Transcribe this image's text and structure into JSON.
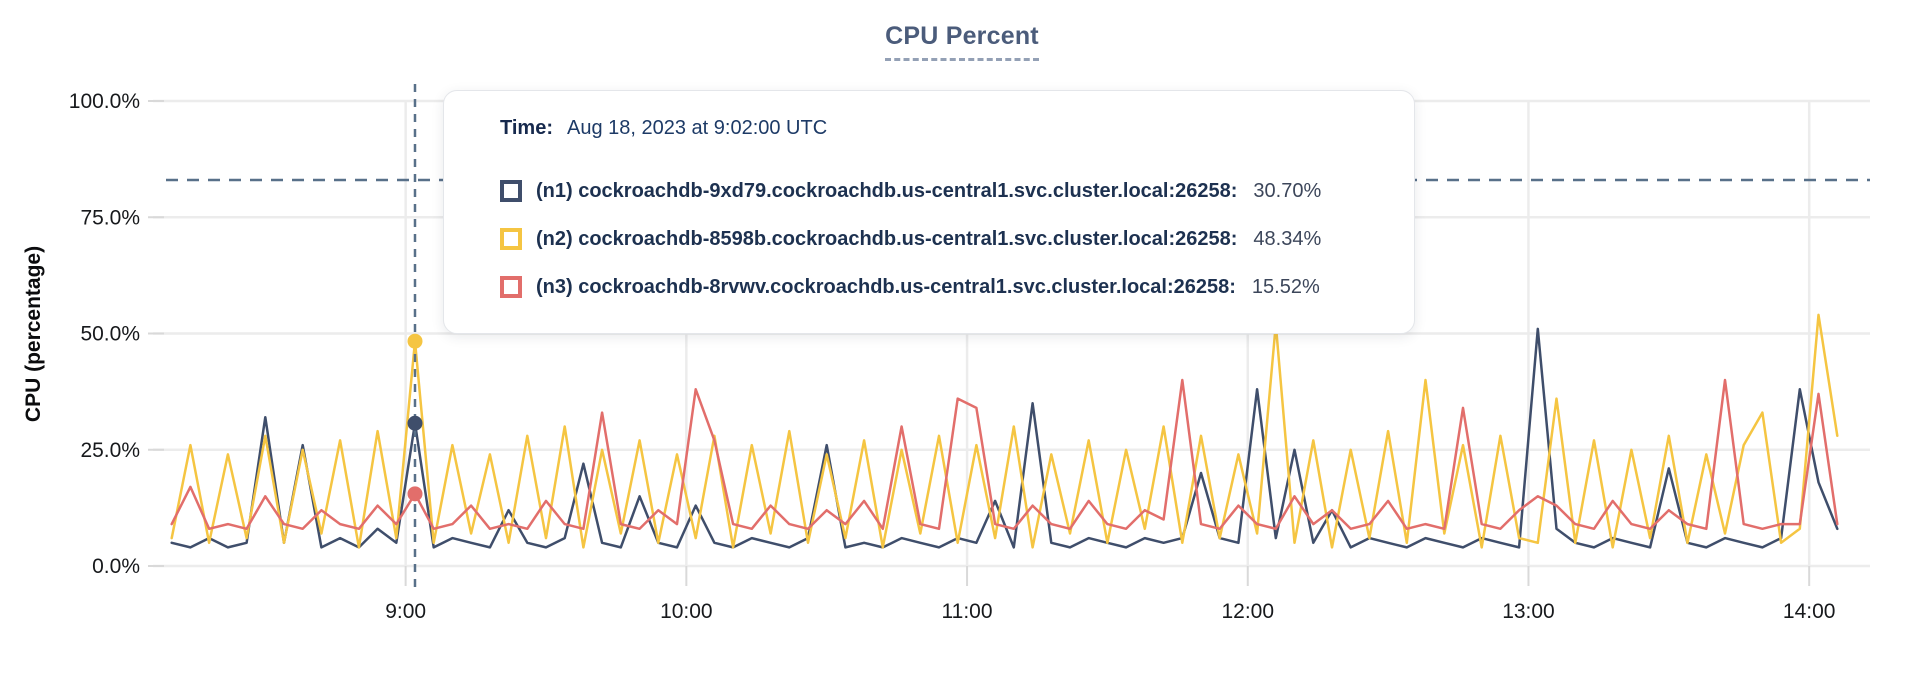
{
  "chart": {
    "title": "CPU Percent"
  },
  "tooltip": {
    "time_label": "Time:",
    "time_value": "Aug 18, 2023 at 9:02:00 UTC",
    "rows": [
      {
        "series": "n1",
        "label": "(n1) cockroachdb-9xd79.cockroachdb.us-central1.svc.cluster.local:26258:",
        "value": "30.70%"
      },
      {
        "series": "n2",
        "label": "(n2) cockroachdb-8598b.cockroachdb.us-central1.svc.cluster.local:26258:",
        "value": "48.34%"
      },
      {
        "series": "n3",
        "label": "(n3) cockroachdb-8rvwv.cockroachdb.us-central1.svc.cluster.local:26258:",
        "value": "15.52%"
      }
    ]
  },
  "colors": {
    "n1": "#3f4e6b",
    "n2": "#f5c542",
    "n3": "#e26e6b",
    "gridline": "#ececec",
    "tick": "#d9d9d9",
    "guide_dash": "#587089",
    "axis_text": "#17191c"
  },
  "chart_data": {
    "type": "line",
    "title": "CPU Percent",
    "xlabel": "",
    "ylabel": "CPU (percentage)",
    "ylim": [
      0,
      100
    ],
    "grid": true,
    "legend_position": "tooltip",
    "y_ticks": [
      {
        "value": 0,
        "label": "0.0%"
      },
      {
        "value": 25,
        "label": "25.0%"
      },
      {
        "value": 50,
        "label": "50.0%"
      },
      {
        "value": 75,
        "label": "75.0%"
      },
      {
        "value": 100,
        "label": "100.0%"
      }
    ],
    "x_ticks": [
      {
        "minutes": 540,
        "label": "9:00"
      },
      {
        "minutes": 600,
        "label": "10:00"
      },
      {
        "minutes": 660,
        "label": "11:00"
      },
      {
        "minutes": 720,
        "label": "12:00"
      },
      {
        "minutes": 780,
        "label": "13:00"
      },
      {
        "minutes": 840,
        "label": "14:00"
      }
    ],
    "x_window_minutes": [
      486,
      853
    ],
    "x_start_minutes": 490,
    "x_step_minutes": 4,
    "threshold_line_percent": 83,
    "hover": {
      "minutes": 542,
      "time": "9:02:00 UTC",
      "points": [
        {
          "series": "n1",
          "value": 30.7
        },
        {
          "series": "n2",
          "value": 48.34
        },
        {
          "series": "n3",
          "value": 15.52
        }
      ]
    },
    "series": [
      {
        "name": "n1",
        "host": "cockroachdb-9xd79.cockroachdb.us-central1.svc.cluster.local:26258",
        "color": "#3f4e6b",
        "values": [
          5,
          4,
          6,
          4,
          5,
          32,
          5,
          26,
          4,
          6,
          4,
          8,
          5,
          30.7,
          4,
          6,
          5,
          4,
          12,
          5,
          4,
          6,
          22,
          5,
          4,
          15,
          5,
          4,
          13,
          5,
          4,
          6,
          5,
          4,
          6,
          26,
          4,
          5,
          4,
          6,
          5,
          4,
          6,
          5,
          14,
          4,
          35,
          5,
          4,
          6,
          5,
          4,
          6,
          5,
          6,
          20,
          6,
          5,
          38,
          6,
          25,
          5,
          12,
          4,
          6,
          5,
          4,
          6,
          5,
          4,
          6,
          5,
          4,
          51,
          8,
          5,
          4,
          6,
          5,
          4,
          21,
          5,
          4,
          6,
          5,
          4,
          6,
          38,
          18,
          8
        ]
      },
      {
        "name": "n2",
        "host": "cockroachdb-8598b.cockroachdb.us-central1.svc.cluster.local:26258",
        "color": "#f5c542",
        "values": [
          6,
          26,
          5,
          24,
          6,
          28,
          5,
          25,
          7,
          27,
          4,
          29,
          6,
          48.34,
          5,
          26,
          7,
          24,
          5,
          28,
          6,
          30,
          4,
          25,
          7,
          27,
          5,
          24,
          6,
          28,
          4,
          26,
          7,
          29,
          5,
          24,
          6,
          27,
          4,
          25,
          7,
          28,
          5,
          26,
          6,
          30,
          4,
          24,
          7,
          27,
          5,
          25,
          8,
          30,
          5,
          28,
          6,
          24,
          7,
          52,
          5,
          27,
          4,
          25,
          6,
          29,
          5,
          40,
          7,
          26,
          4,
          28,
          6,
          5,
          36,
          5,
          27,
          4,
          25,
          6,
          28,
          5,
          24,
          7,
          26,
          33,
          5,
          8,
          54,
          28
        ]
      },
      {
        "name": "n3",
        "host": "cockroachdb-8rvwv.cockroachdb.us-central1.svc.cluster.local:26258",
        "color": "#e26e6b",
        "values": [
          9,
          17,
          8,
          9,
          8,
          15,
          9,
          8,
          12,
          9,
          8,
          13,
          9,
          15.52,
          8,
          9,
          13,
          8,
          9,
          8,
          14,
          9,
          8,
          33,
          9,
          8,
          12,
          9,
          38,
          27,
          9,
          8,
          13,
          9,
          8,
          12,
          9,
          14,
          8,
          30,
          9,
          8,
          36,
          34,
          9,
          8,
          13,
          9,
          8,
          14,
          9,
          8,
          12,
          10,
          40,
          9,
          8,
          13,
          9,
          8,
          15,
          9,
          12,
          8,
          9,
          14,
          8,
          9,
          8,
          34,
          9,
          8,
          12,
          15,
          13,
          9,
          8,
          14,
          9,
          8,
          12,
          9,
          8,
          40,
          9,
          8,
          9,
          9,
          37,
          9
        ]
      }
    ]
  }
}
